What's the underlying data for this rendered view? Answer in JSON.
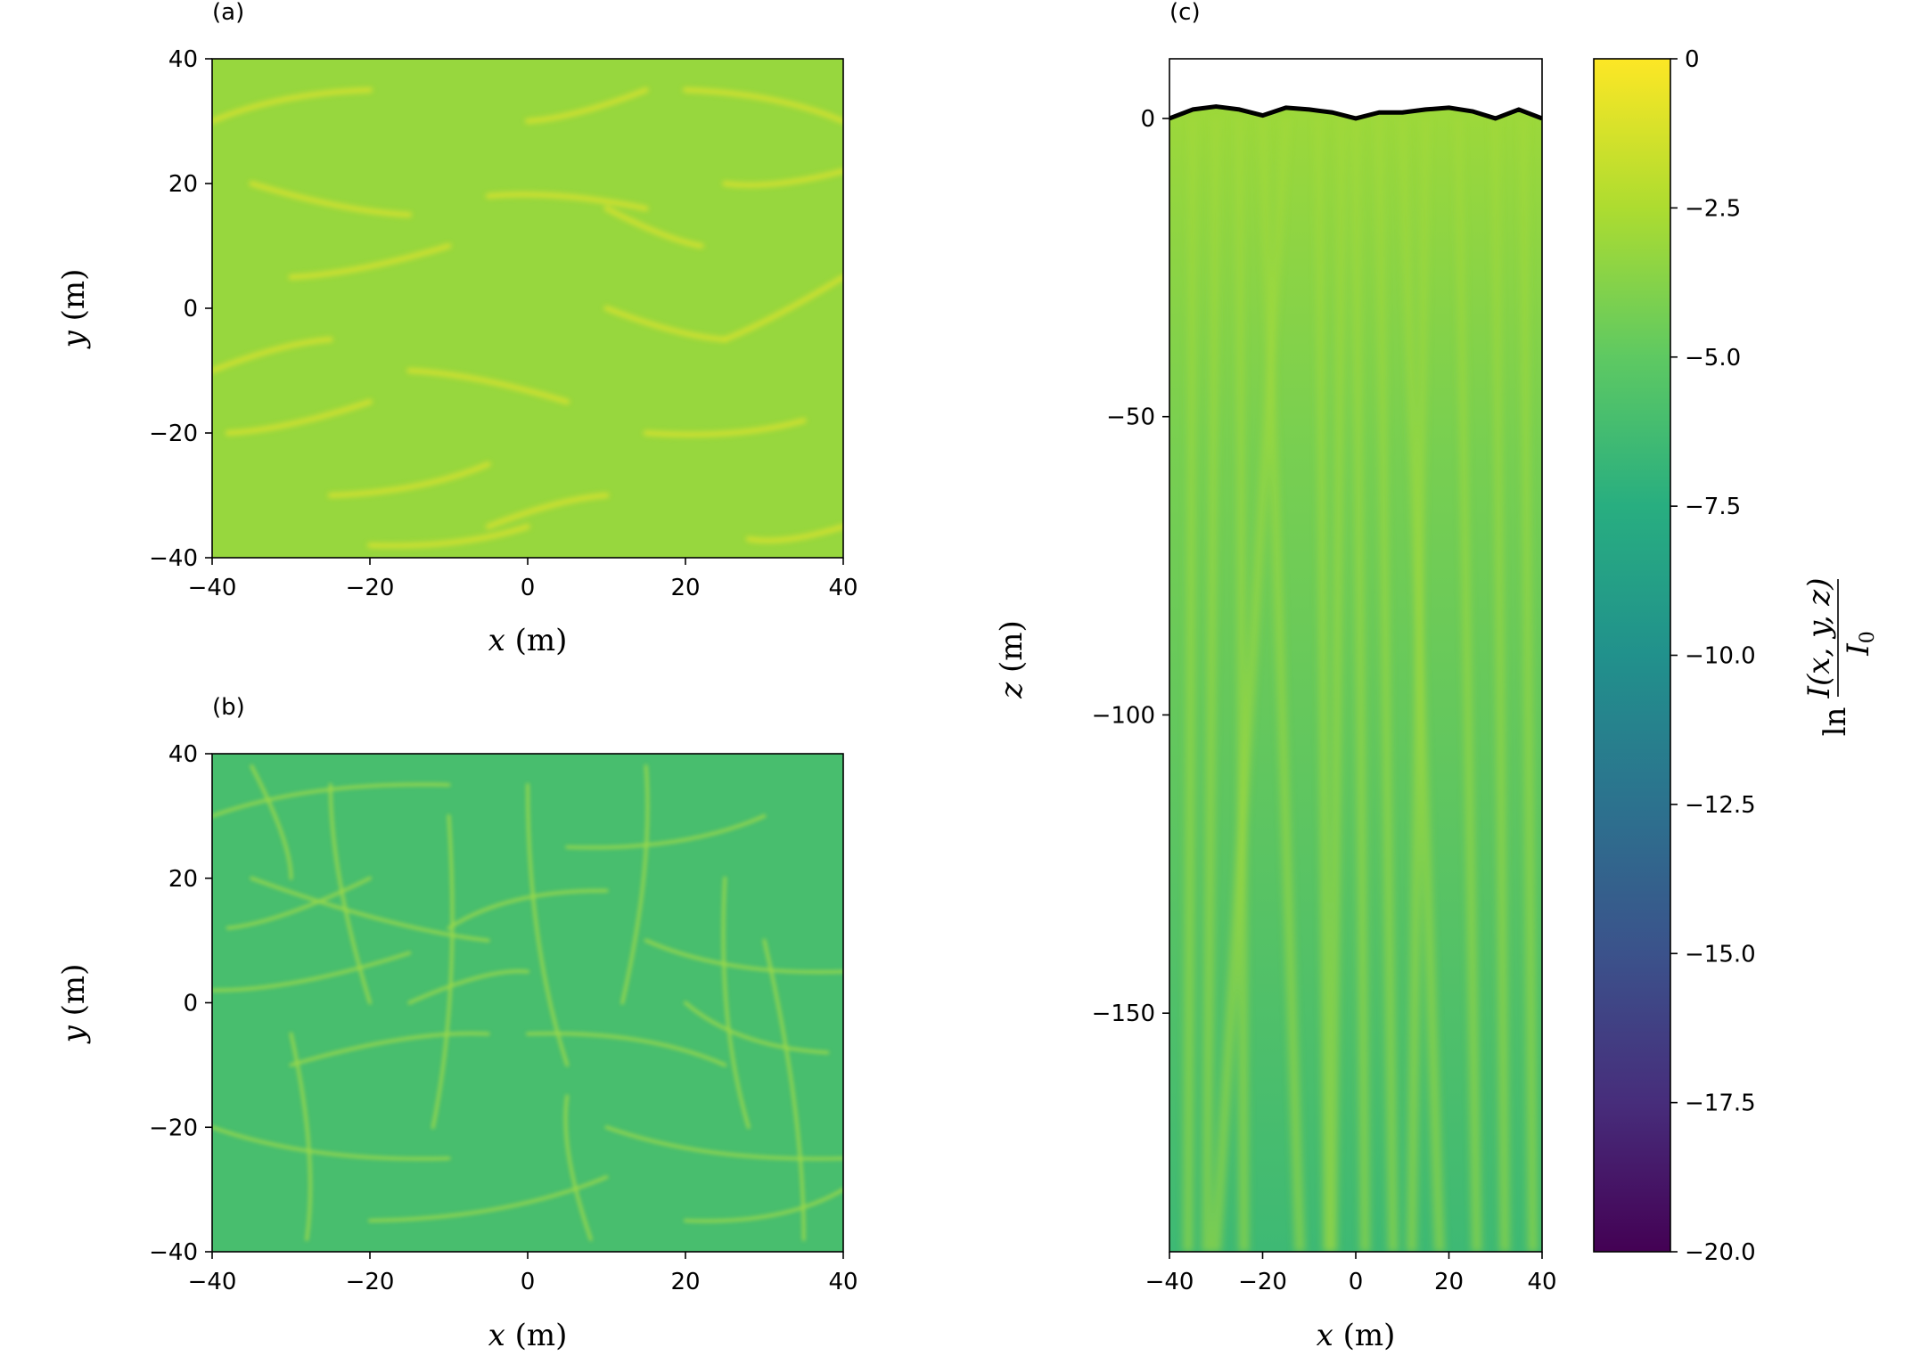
{
  "chart_data": [
    {
      "id": "a",
      "type": "heatmap",
      "panel_label": "(a)",
      "xlabel": {
        "var": "x",
        "unit": "(m)"
      },
      "ylabel": {
        "var": "y",
        "unit": "(m)"
      },
      "xlim": [
        -40,
        40
      ],
      "ylim": [
        -40,
        40
      ],
      "xticks": [
        -40,
        -20,
        0,
        20,
        40
      ],
      "yticks": [
        -40,
        -20,
        0,
        20,
        40
      ],
      "xtick_labels": [
        "−40",
        "−20",
        "0",
        "20",
        "40"
      ],
      "ytick_labels": [
        "−40",
        "−20",
        "0",
        "20",
        "40"
      ],
      "description": "surface-layer light intensity: mostly uniform green (ln I/I0 about -3) with bright yellow caustic streaks",
      "base_value": -3.2,
      "caustics": [
        {
          "from": [
            -40,
            30
          ],
          "to": [
            -20,
            35
          ]
        },
        {
          "from": [
            -35,
            20
          ],
          "to": [
            -15,
            15
          ]
        },
        {
          "from": [
            -30,
            5
          ],
          "to": [
            -10,
            10
          ]
        },
        {
          "from": [
            -40,
            -10
          ],
          "to": [
            -25,
            -5
          ]
        },
        {
          "from": [
            -38,
            -20
          ],
          "to": [
            -20,
            -15
          ]
        },
        {
          "from": [
            -25,
            -30
          ],
          "to": [
            -5,
            -25
          ]
        },
        {
          "from": [
            -5,
            18
          ],
          "to": [
            15,
            16
          ]
        },
        {
          "from": [
            10,
            16
          ],
          "to": [
            22,
            10
          ]
        },
        {
          "from": [
            0,
            30
          ],
          "to": [
            15,
            35
          ]
        },
        {
          "from": [
            20,
            35
          ],
          "to": [
            40,
            30
          ]
        },
        {
          "from": [
            25,
            20
          ],
          "to": [
            40,
            22
          ]
        },
        {
          "from": [
            10,
            0
          ],
          "to": [
            25,
            -5
          ]
        },
        {
          "from": [
            -15,
            -10
          ],
          "to": [
            5,
            -15
          ]
        },
        {
          "from": [
            15,
            -20
          ],
          "to": [
            35,
            -18
          ]
        },
        {
          "from": [
            25,
            -5
          ],
          "to": [
            40,
            5
          ]
        },
        {
          "from": [
            -5,
            -35
          ],
          "to": [
            10,
            -30
          ]
        },
        {
          "from": [
            28,
            -37
          ],
          "to": [
            40,
            -35
          ]
        },
        {
          "from": [
            -20,
            -38
          ],
          "to": [
            0,
            -35
          ]
        }
      ]
    },
    {
      "id": "b",
      "type": "heatmap",
      "panel_label": "(b)",
      "xlabel": {
        "var": "x",
        "unit": "(m)"
      },
      "ylabel": {
        "var": "y",
        "unit": "(m)"
      },
      "xlim": [
        -40,
        40
      ],
      "ylim": [
        -40,
        40
      ],
      "xticks": [
        -40,
        -20,
        0,
        20,
        40
      ],
      "yticks": [
        -40,
        -20,
        0,
        20,
        40
      ],
      "xtick_labels": [
        "−40",
        "−20",
        "0",
        "20",
        "40"
      ],
      "ytick_labels": [
        "−40",
        "−20",
        "0",
        "20",
        "40"
      ],
      "description": "deeper-layer light intensity: teal-green background (ln I/I0 about -6) with a dense network of light-green caustic filaments",
      "base_value": -6.0,
      "caustics": [
        {
          "from": [
            -40,
            30
          ],
          "to": [
            -10,
            35
          ]
        },
        {
          "from": [
            -35,
            20
          ],
          "to": [
            -5,
            10
          ]
        },
        {
          "from": [
            -40,
            2
          ],
          "to": [
            -15,
            8
          ]
        },
        {
          "from": [
            -30,
            -10
          ],
          "to": [
            -5,
            -5
          ]
        },
        {
          "from": [
            -40,
            -20
          ],
          "to": [
            -10,
            -25
          ]
        },
        {
          "from": [
            -20,
            -35
          ],
          "to": [
            10,
            -28
          ]
        },
        {
          "from": [
            -10,
            12
          ],
          "to": [
            10,
            18
          ]
        },
        {
          "from": [
            5,
            25
          ],
          "to": [
            30,
            30
          ]
        },
        {
          "from": [
            15,
            10
          ],
          "to": [
            40,
            5
          ]
        },
        {
          "from": [
            0,
            -5
          ],
          "to": [
            25,
            -10
          ]
        },
        {
          "from": [
            10,
            -20
          ],
          "to": [
            40,
            -25
          ]
        },
        {
          "from": [
            20,
            -35
          ],
          "to": [
            40,
            -30
          ]
        },
        {
          "from": [
            -25,
            35
          ],
          "to": [
            -20,
            0
          ]
        },
        {
          "from": [
            -10,
            30
          ],
          "to": [
            -12,
            -20
          ]
        },
        {
          "from": [
            0,
            35
          ],
          "to": [
            5,
            -10
          ]
        },
        {
          "from": [
            15,
            38
          ],
          "to": [
            12,
            0
          ]
        },
        {
          "from": [
            25,
            20
          ],
          "to": [
            28,
            -20
          ]
        },
        {
          "from": [
            -30,
            -5
          ],
          "to": [
            -28,
            -38
          ]
        },
        {
          "from": [
            5,
            -15
          ],
          "to": [
            8,
            -38
          ]
        },
        {
          "from": [
            30,
            10
          ],
          "to": [
            35,
            -38
          ]
        },
        {
          "from": [
            -38,
            12
          ],
          "to": [
            -20,
            20
          ]
        },
        {
          "from": [
            -15,
            0
          ],
          "to": [
            0,
            5
          ]
        },
        {
          "from": [
            20,
            0
          ],
          "to": [
            38,
            -8
          ]
        },
        {
          "from": [
            -35,
            38
          ],
          "to": [
            -30,
            20
          ]
        }
      ]
    },
    {
      "id": "c",
      "type": "heatmap",
      "panel_label": "(c)",
      "xlabel": {
        "var": "x",
        "unit": "(m)"
      },
      "ylabel": {
        "var": "z",
        "unit": "(m)"
      },
      "xlim": [
        -40,
        40
      ],
      "ylim": [
        -190,
        10
      ],
      "xticks": [
        -40,
        -20,
        0,
        20,
        40
      ],
      "yticks": [
        0,
        -50,
        -100,
        -150
      ],
      "xtick_labels": [
        "−40",
        "−20",
        "0",
        "20",
        "40"
      ],
      "ytick_labels": [
        "0",
        "−50",
        "−100",
        "−150"
      ],
      "description": "vertical cross-section: intensity fades from about -3 at the surface to about -6.5 at z=-190, with bright light shafts descending from the wavy surface",
      "surface_value": -3.0,
      "bottom_value": -6.5,
      "surface_wave": [
        {
          "x": -40,
          "z": 0
        },
        {
          "x": -35,
          "z": 1.5
        },
        {
          "x": -30,
          "z": 2
        },
        {
          "x": -25,
          "z": 1.5
        },
        {
          "x": -20,
          "z": 0.5
        },
        {
          "x": -15,
          "z": 1.8
        },
        {
          "x": -10,
          "z": 1.5
        },
        {
          "x": -5,
          "z": 1.0
        },
        {
          "x": 0,
          "z": 0
        },
        {
          "x": 5,
          "z": 1.0
        },
        {
          "x": 10,
          "z": 1.0
        },
        {
          "x": 15,
          "z": 1.5
        },
        {
          "x": 20,
          "z": 1.8
        },
        {
          "x": 25,
          "z": 1.2
        },
        {
          "x": 30,
          "z": 0
        },
        {
          "x": 35,
          "z": 1.5
        },
        {
          "x": 40,
          "z": 0
        }
      ],
      "light_shafts": [
        {
          "x_top": -35,
          "x_bottom": -36
        },
        {
          "x_top": -30,
          "x_bottom": -32
        },
        {
          "x_top": -20,
          "x_bottom": -12
        },
        {
          "x_top": -15,
          "x_bottom": -30
        },
        {
          "x_top": -8,
          "x_bottom": -6
        },
        {
          "x_top": -3,
          "x_bottom": -5
        },
        {
          "x_top": 5,
          "x_bottom": 8
        },
        {
          "x_top": 10,
          "x_bottom": 18
        },
        {
          "x_top": 15,
          "x_bottom": 12
        },
        {
          "x_top": 22,
          "x_bottom": 26
        },
        {
          "x_top": 30,
          "x_bottom": 32
        },
        {
          "x_top": 36,
          "x_bottom": 38
        },
        {
          "x_top": 0,
          "x_bottom": 2
        },
        {
          "x_top": -25,
          "x_bottom": -24
        }
      ]
    }
  ],
  "colorbar": {
    "label_fraction": {
      "numerator": "I(x, y, z)",
      "denominator": "I",
      "denominator_sub": "0"
    },
    "label_prefix": "ln",
    "vmin": -20.0,
    "vmax": 0,
    "colormap": "viridis",
    "ticks": [
      0,
      -2.5,
      -5.0,
      -7.5,
      -10.0,
      -12.5,
      -15.0,
      -17.5,
      -20.0
    ],
    "tick_labels": [
      "0",
      "−2.5",
      "−5.0",
      "−7.5",
      "−10.0",
      "−12.5",
      "−15.0",
      "−17.5",
      "−20.0"
    ]
  }
}
